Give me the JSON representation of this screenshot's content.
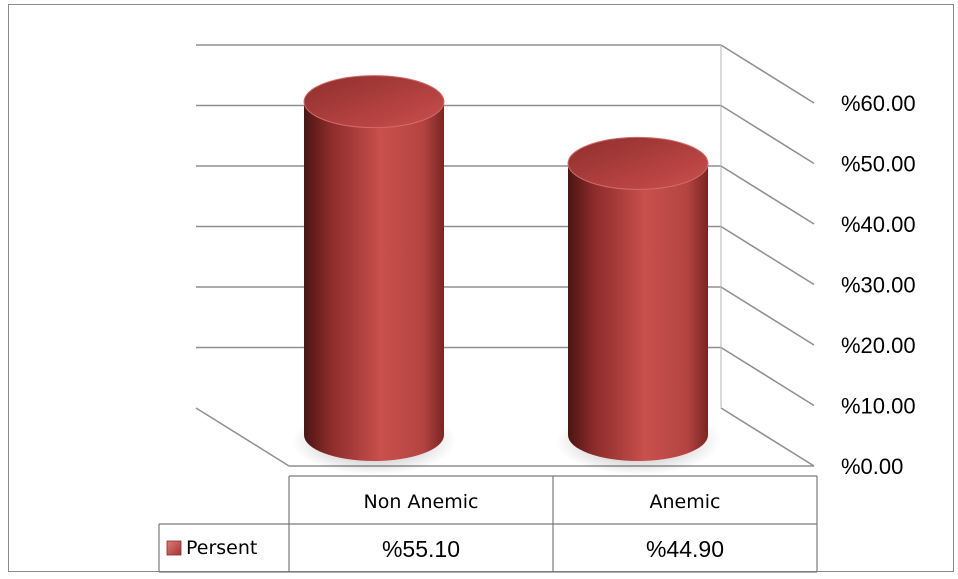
{
  "chart_data": {
    "type": "bar",
    "style": "3d-cylinder",
    "categories": [
      "Non Anemic",
      "Anemic"
    ],
    "series": [
      {
        "name": "Persent",
        "values": [
          55.1,
          44.9
        ],
        "color": "#c0504d"
      }
    ],
    "value_labels": [
      "%55.10",
      "%44.90"
    ],
    "y_ticks": [
      "%0.00",
      "%10.00",
      "%20.00",
      "%30.00",
      "%40.00",
      "%50.00",
      "%60.00"
    ],
    "ylim": [
      0,
      60
    ],
    "grid": true,
    "y_axis_position": "right",
    "legend_placement": "data-table-left",
    "title": "",
    "xlabel": "",
    "ylabel": ""
  }
}
